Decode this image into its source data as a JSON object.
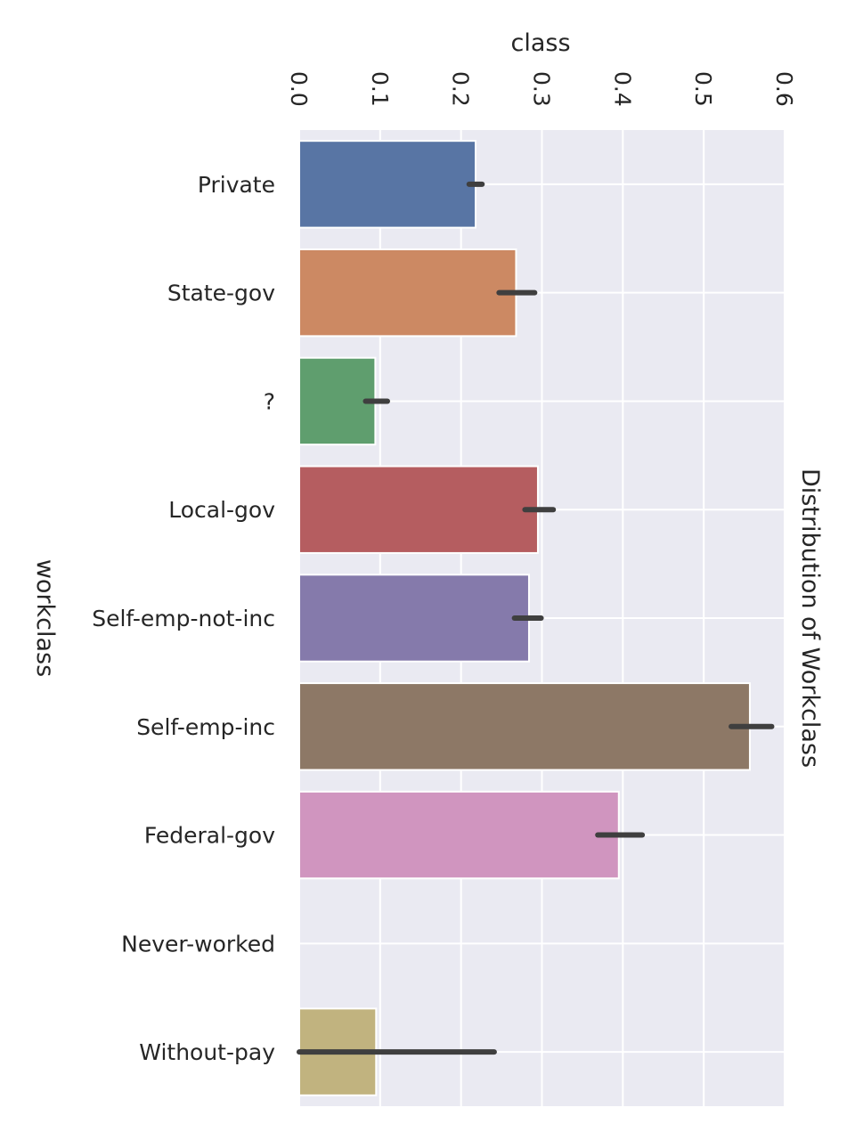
{
  "chart_data": {
    "type": "bar",
    "orientation": "horizontal",
    "title": "Distribution of Workclass",
    "xlabel": "class",
    "ylabel": "workclass",
    "xlim": [
      0,
      0.6
    ],
    "x_ticks": [
      0.0,
      0.1,
      0.2,
      0.3,
      0.4,
      0.5,
      0.6
    ],
    "x_tick_labels": [
      "0.0",
      "0.1",
      "0.2",
      "0.3",
      "0.4",
      "0.5",
      "0.6"
    ],
    "x_axis_position": "top",
    "grid": true,
    "categories": [
      "Private",
      "State-gov",
      "?",
      "Local-gov",
      "Self-emp-not-inc",
      "Self-emp-inc",
      "Federal-gov",
      "Never-worked",
      "Without-pay"
    ],
    "values": [
      0.218,
      0.268,
      0.094,
      0.295,
      0.284,
      0.557,
      0.395,
      0.0,
      0.095
    ],
    "error_low": [
      0.21,
      0.247,
      0.082,
      0.279,
      0.266,
      0.534,
      0.369,
      0.0,
      0.0
    ],
    "error_high": [
      0.226,
      0.291,
      0.109,
      0.314,
      0.299,
      0.584,
      0.424,
      0.0,
      0.241
    ],
    "colors": [
      "#5875a4",
      "#cc8963",
      "#5f9e6e",
      "#b55d60",
      "#857aab",
      "#8d7866",
      "#d095bf",
      "#8c8c8c",
      "#c1b37f"
    ]
  },
  "style": {
    "plot_background": "#eaeaf2",
    "grid_color": "#ffffff",
    "error_bar_color": "#3f3f3f"
  }
}
